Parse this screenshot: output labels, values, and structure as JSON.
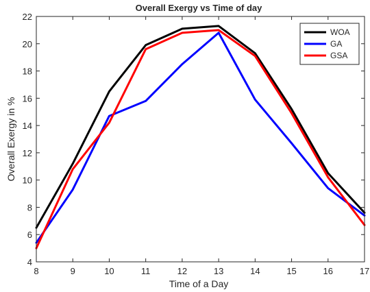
{
  "chart_data": {
    "type": "line",
    "title": "Overall Exergy vs Time of day",
    "xlabel": "Time of a Day",
    "ylabel": "Overall Exergy in %",
    "x": [
      8,
      9,
      10,
      11,
      12,
      13,
      14,
      15,
      16,
      17
    ],
    "xlim": [
      8,
      17
    ],
    "ylim": [
      4,
      22
    ],
    "xticks": [
      "8",
      "9",
      "10",
      "11",
      "12",
      "13",
      "14",
      "15",
      "16",
      "17"
    ],
    "yticks": [
      "4",
      "6",
      "8",
      "10",
      "12",
      "14",
      "16",
      "18",
      "20",
      "22"
    ],
    "grid": false,
    "legend_position": "top-right",
    "series": [
      {
        "name": "WOA",
        "color": "#000000",
        "values": [
          6.5,
          11.2,
          16.5,
          19.9,
          21.1,
          21.3,
          19.3,
          15.2,
          10.5,
          7.6
        ]
      },
      {
        "name": "GA",
        "color": "#0000ff",
        "values": [
          5.4,
          9.3,
          14.7,
          15.8,
          18.5,
          20.8,
          15.9,
          12.7,
          9.4,
          7.4
        ]
      },
      {
        "name": "GSA",
        "color": "#ff0000",
        "values": [
          5.0,
          10.8,
          14.2,
          19.6,
          20.8,
          21.0,
          19.1,
          14.9,
          10.2,
          6.7
        ]
      }
    ]
  }
}
